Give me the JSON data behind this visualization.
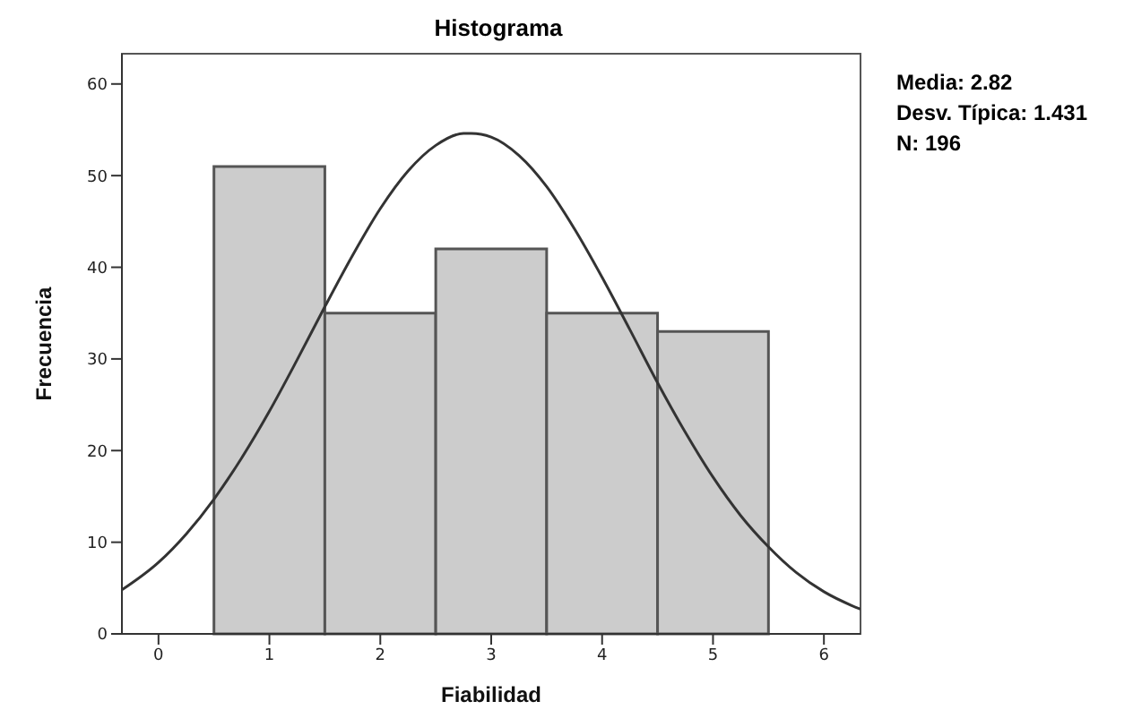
{
  "chart_data": {
    "type": "histogram",
    "title": "Histograma",
    "xlabel": "Fiabilidad",
    "ylabel": "Frecuencia",
    "annotations": [
      "Media: 2.82",
      "Desv. Típica: 1.431",
      "N: 196"
    ],
    "bins": [
      0.5,
      1.5,
      2.5,
      3.5,
      4.5,
      5.5
    ],
    "values": [
      51,
      35,
      42,
      35,
      33
    ],
    "color": "#cccccc",
    "series": [
      {
        "type": "line",
        "color": "#333333",
        "x": [
          -0.33,
          0,
          0.25,
          0.5,
          0.75,
          1,
          1.25,
          1.5,
          1.75,
          2,
          2.25,
          2.5,
          2.75,
          2.82,
          3,
          3.25,
          3.5,
          3.75,
          4,
          4.25,
          4.5,
          4.75,
          5,
          5.25,
          5.5,
          5.75,
          6,
          6.25,
          6.33
        ],
        "values": [
          4.8,
          7.8,
          10.9,
          14.7,
          19.2,
          24.3,
          29.9,
          35.7,
          41.3,
          46.4,
          50.5,
          53.3,
          54.6,
          54.6,
          54.2,
          52.2,
          48.8,
          44.2,
          38.9,
          33.2,
          27.4,
          22.0,
          17.1,
          12.9,
          9.5,
          6.7,
          4.6,
          3.1,
          2.7
        ]
      }
    ],
    "xlim": [
      -0.33,
      6.33
    ],
    "xticks": [
      0,
      1,
      2,
      3,
      4,
      5,
      6
    ],
    "ylim": [
      0,
      63.3
    ],
    "yticks": [
      0,
      10,
      20,
      30,
      40,
      50,
      60
    ]
  }
}
